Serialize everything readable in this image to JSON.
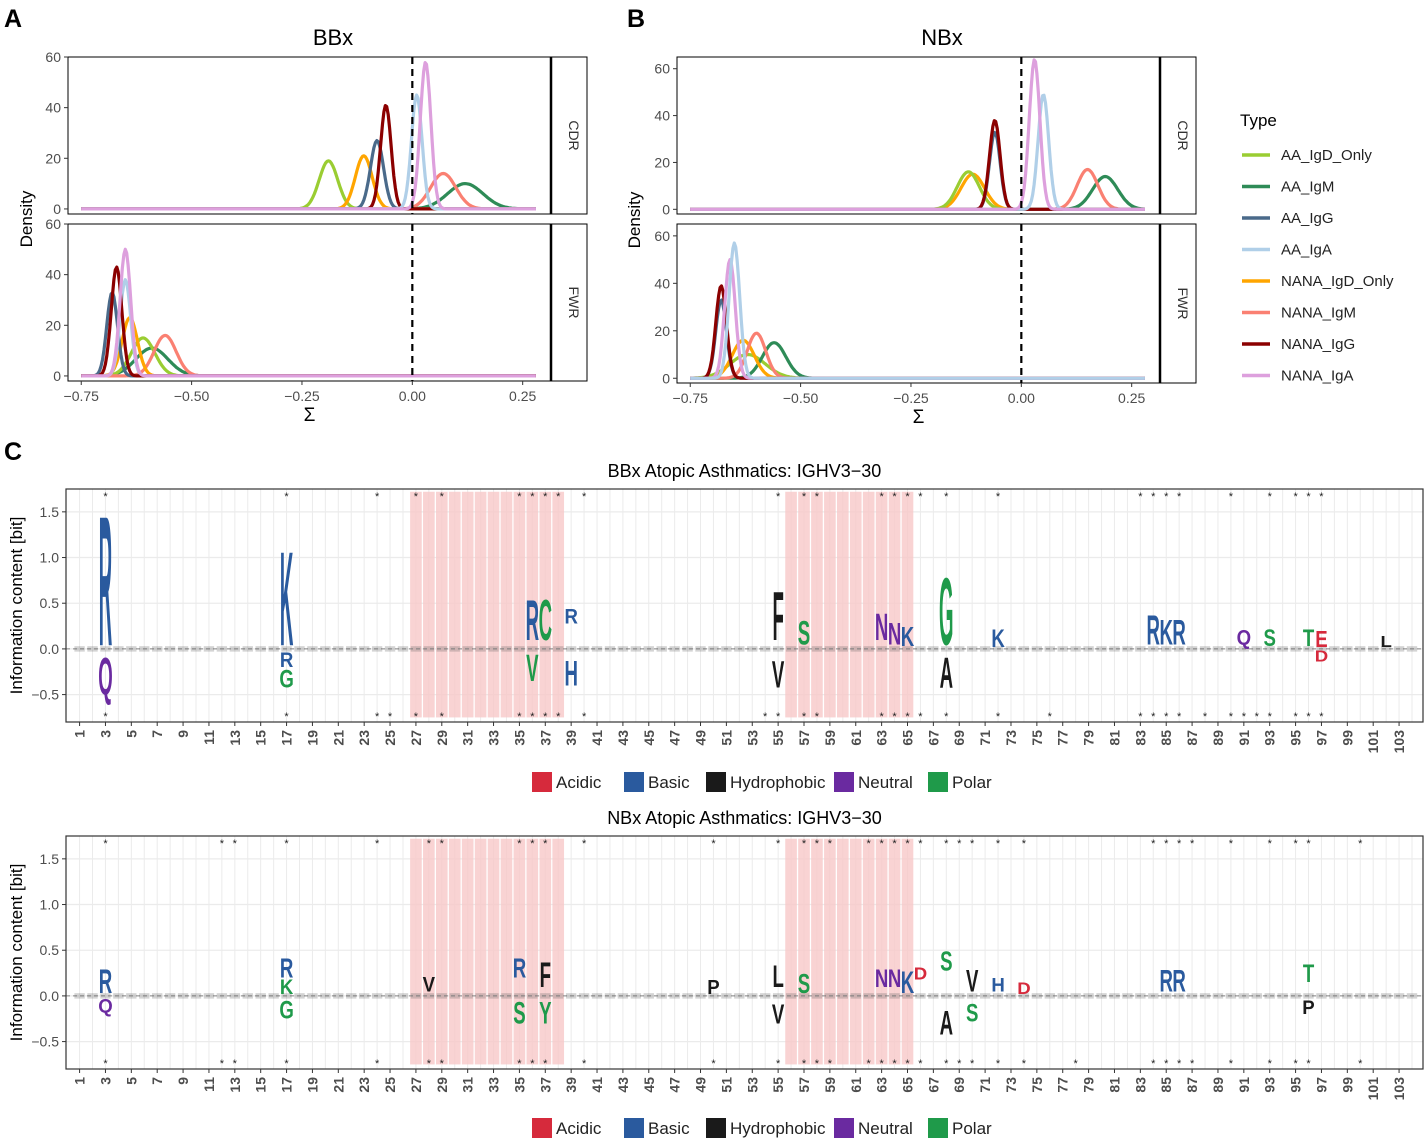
{
  "panel_labels": {
    "a": "A",
    "b": "B",
    "c": "C"
  },
  "colors": {
    "AA_IgD_Only": "#9acd32",
    "AA_IgM": "#2e8b57",
    "AA_IgG": "#4a6a8a",
    "AA_IgA": "#b0cfe8",
    "NANA_IgD_Only": "#ffa500",
    "NANA_IgM": "#fa8072",
    "NANA_IgG": "#8b0000",
    "NANA_IgA": "#dda0dd",
    "Acidic": "#d62a3c",
    "Basic": "#2a5a9e",
    "Hydrophobic": "#1a1a1a",
    "Neutral": "#6a2aa0",
    "Polar": "#1f9a4a",
    "cdr_highlight": "#f7c8c8"
  },
  "legend": {
    "title": "Type",
    "entries": [
      "AA_IgD_Only",
      "AA_IgM",
      "AA_IgG",
      "AA_IgA",
      "NANA_IgD_Only",
      "NANA_IgM",
      "NANA_IgG",
      "NANA_IgA"
    ]
  },
  "logo_legend": {
    "entries": [
      "Acidic",
      "Basic",
      "Hydrophobic",
      "Neutral",
      "Polar"
    ]
  },
  "chart_data": [
    {
      "type": "density",
      "title": "BBx",
      "xlabel": "Σ",
      "ylabel": "Density",
      "xlim": [
        -0.78,
        0.33
      ],
      "xticks": [
        -0.75,
        -0.5,
        -0.25,
        0.0,
        0.25
      ],
      "xtick_labels": [
        "−0.75",
        "−0.50",
        "−0.25",
        "0.00",
        "0.25"
      ],
      "vline": 0,
      "facets": [
        {
          "strip": "CDR",
          "ylim": [
            -2,
            60
          ],
          "yticks": [
            0,
            20,
            40,
            60
          ],
          "series": [
            {
              "name": "AA_IgD_Only",
              "mean": -0.19,
              "peak": 19
            },
            {
              "name": "AA_IgM",
              "mean": 0.12,
              "peak": 10
            },
            {
              "name": "AA_IgG",
              "mean": -0.08,
              "peak": 27
            },
            {
              "name": "AA_IgA",
              "mean": 0.01,
              "peak": 45
            },
            {
              "name": "NANA_IgD_Only",
              "mean": -0.11,
              "peak": 21
            },
            {
              "name": "NANA_IgM",
              "mean": 0.07,
              "peak": 14
            },
            {
              "name": "NANA_IgG",
              "mean": -0.06,
              "peak": 41
            },
            {
              "name": "NANA_IgA",
              "mean": 0.03,
              "peak": 58
            }
          ]
        },
        {
          "strip": "FWR",
          "ylim": [
            -2,
            60
          ],
          "yticks": [
            0,
            20,
            40,
            60
          ],
          "series": [
            {
              "name": "AA_IgD_Only",
              "mean": -0.61,
              "peak": 15
            },
            {
              "name": "AA_IgM",
              "mean": -0.59,
              "peak": 11
            },
            {
              "name": "AA_IgG",
              "mean": -0.68,
              "peak": 33
            },
            {
              "name": "AA_IgA",
              "mean": -0.65,
              "peak": 38
            },
            {
              "name": "NANA_IgD_Only",
              "mean": -0.64,
              "peak": 23
            },
            {
              "name": "NANA_IgM",
              "mean": -0.56,
              "peak": 16
            },
            {
              "name": "NANA_IgG",
              "mean": -0.67,
              "peak": 43
            },
            {
              "name": "NANA_IgA",
              "mean": -0.65,
              "peak": 50
            }
          ]
        }
      ]
    },
    {
      "type": "density",
      "title": "NBx",
      "xlabel": "Σ",
      "ylabel": "Density",
      "xlim": [
        -0.78,
        0.33
      ],
      "xticks": [
        -0.75,
        -0.5,
        -0.25,
        0.0,
        0.25
      ],
      "xtick_labels": [
        "−0.75",
        "−0.50",
        "−0.25",
        "0.00",
        "0.25"
      ],
      "vline": 0,
      "facets": [
        {
          "strip": "CDR",
          "ylim": [
            -2,
            65
          ],
          "yticks": [
            0,
            20,
            40,
            60
          ],
          "series": [
            {
              "name": "AA_IgD_Only",
              "mean": -0.12,
              "peak": 16
            },
            {
              "name": "AA_IgM",
              "mean": 0.19,
              "peak": 14
            },
            {
              "name": "AA_IgG",
              "mean": -0.06,
              "peak": 33
            },
            {
              "name": "AA_IgA",
              "mean": 0.05,
              "peak": 49
            },
            {
              "name": "NANA_IgD_Only",
              "mean": -0.11,
              "peak": 15
            },
            {
              "name": "NANA_IgM",
              "mean": 0.15,
              "peak": 17
            },
            {
              "name": "NANA_IgG",
              "mean": -0.06,
              "peak": 38
            },
            {
              "name": "NANA_IgA",
              "mean": 0.03,
              "peak": 64
            }
          ]
        },
        {
          "strip": "FWR",
          "ylim": [
            -2,
            65
          ],
          "yticks": [
            0,
            20,
            40,
            60
          ],
          "series": [
            {
              "name": "AA_IgD_Only",
              "mean": -0.62,
              "peak": 10
            },
            {
              "name": "AA_IgM",
              "mean": -0.56,
              "peak": 15
            },
            {
              "name": "AA_IgG",
              "mean": -0.68,
              "peak": 33
            },
            {
              "name": "AA_IgA",
              "mean": -0.65,
              "peak": 57
            },
            {
              "name": "NANA_IgD_Only",
              "mean": -0.63,
              "peak": 16
            },
            {
              "name": "NANA_IgM",
              "mean": -0.6,
              "peak": 19
            },
            {
              "name": "NANA_IgG",
              "mean": -0.68,
              "peak": 39
            },
            {
              "name": "NANA_IgA",
              "mean": -0.66,
              "peak": 50
            }
          ]
        }
      ]
    },
    {
      "type": "sequence-logo",
      "title": "BBx Atopic Asthmatics: IGHV3−30",
      "ylabel": "Information content [bit]",
      "ylim": [
        -0.8,
        1.75
      ],
      "yticks": [
        -0.5,
        0.0,
        0.5,
        1.0,
        1.5
      ],
      "ytick_labels": [
        "−0.5",
        "0.0",
        "0.5",
        "1.0",
        "1.5"
      ],
      "positions": 104,
      "xtick_labels": [
        "1",
        "3",
        "5",
        "7",
        "9",
        "11",
        "13",
        "15",
        "17",
        "19",
        "21",
        "23",
        "25",
        "27",
        "29",
        "31",
        "33",
        "35",
        "37",
        "39",
        "41",
        "43",
        "45",
        "47",
        "49",
        "51",
        "53",
        "55",
        "57",
        "59",
        "61",
        "63",
        "65",
        "67",
        "69",
        "71",
        "73",
        "75",
        "77",
        "79",
        "81",
        "83",
        "85",
        "87",
        "89",
        "91",
        "93",
        "95",
        "97",
        "99",
        "101",
        "103"
      ],
      "cdr_regions": [
        [
          27,
          38
        ],
        [
          56,
          65
        ]
      ],
      "stars_top": [
        3,
        17,
        24,
        27,
        29,
        35,
        36,
        37,
        38,
        40,
        55,
        57,
        58,
        63,
        64,
        65,
        66,
        68,
        72,
        83,
        84,
        85,
        86,
        90,
        93,
        95,
        96,
        97
      ],
      "stars_bottom": [
        3,
        17,
        24,
        25,
        27,
        29,
        35,
        36,
        37,
        38,
        40,
        54,
        55,
        57,
        58,
        63,
        64,
        65,
        66,
        68,
        72,
        76,
        83,
        84,
        85,
        86,
        88,
        90,
        91,
        92,
        93,
        95,
        96,
        97
      ],
      "letters": [
        {
          "pos": 3,
          "aa": "R",
          "cls": "Basic",
          "lo": 0.04,
          "hi": 1.5
        },
        {
          "pos": 3,
          "aa": "Q",
          "cls": "Neutral",
          "lo": -0.5,
          "hi": -0.08
        },
        {
          "pos": 17,
          "aa": "K",
          "cls": "Basic",
          "lo": 0.04,
          "hi": 1.1
        },
        {
          "pos": 17,
          "aa": "R",
          "cls": "Basic",
          "lo": -0.2,
          "hi": -0.03
        },
        {
          "pos": 17,
          "aa": "G",
          "cls": "Polar",
          "lo": -0.42,
          "hi": -0.22
        },
        {
          "pos": 36,
          "aa": "R",
          "cls": "Basic",
          "lo": 0.1,
          "hi": 0.55
        },
        {
          "pos": 37,
          "aa": "C",
          "cls": "Polar",
          "lo": 0.1,
          "hi": 0.55
        },
        {
          "pos": 36,
          "aa": "V",
          "cls": "Polar",
          "lo": -0.35,
          "hi": -0.05
        },
        {
          "pos": 39,
          "aa": "R",
          "cls": "Basic",
          "lo": 0.28,
          "hi": 0.45
        },
        {
          "pos": 39,
          "aa": "H",
          "cls": "Basic",
          "lo": -0.4,
          "hi": -0.12
        },
        {
          "pos": 55,
          "aa": "F",
          "cls": "Hydrophobic",
          "lo": 0.1,
          "hi": 0.65
        },
        {
          "pos": 55,
          "aa": "V",
          "cls": "Hydrophobic",
          "lo": -0.42,
          "hi": -0.12
        },
        {
          "pos": 57,
          "aa": "S",
          "cls": "Polar",
          "lo": 0.05,
          "hi": 0.32
        },
        {
          "pos": 63,
          "aa": "N",
          "cls": "Neutral",
          "lo": 0.1,
          "hi": 0.4
        },
        {
          "pos": 64,
          "aa": "N",
          "cls": "Neutral",
          "lo": 0.05,
          "hi": 0.3
        },
        {
          "pos": 65,
          "aa": "K",
          "cls": "Basic",
          "lo": 0.03,
          "hi": 0.25
        },
        {
          "pos": 68,
          "aa": "G",
          "cls": "Polar",
          "lo": 0.05,
          "hi": 0.8
        },
        {
          "pos": 68,
          "aa": "A",
          "cls": "Hydrophobic",
          "lo": -0.42,
          "hi": -0.08
        },
        {
          "pos": 72,
          "aa": "K",
          "cls": "Basic",
          "lo": 0.02,
          "hi": 0.22
        },
        {
          "pos": 84,
          "aa": "R",
          "cls": "Basic",
          "lo": 0.05,
          "hi": 0.38
        },
        {
          "pos": 85,
          "aa": "K",
          "cls": "Basic",
          "lo": 0.05,
          "hi": 0.33
        },
        {
          "pos": 86,
          "aa": "R",
          "cls": "Basic",
          "lo": 0.05,
          "hi": 0.33
        },
        {
          "pos": 91,
          "aa": "Q",
          "cls": "Neutral",
          "lo": 0.05,
          "hi": 0.22
        },
        {
          "pos": 93,
          "aa": "S",
          "cls": "Polar",
          "lo": 0.03,
          "hi": 0.22
        },
        {
          "pos": 96,
          "aa": "T",
          "cls": "Polar",
          "lo": 0.03,
          "hi": 0.22
        },
        {
          "pos": 97,
          "aa": "E",
          "cls": "Acidic",
          "lo": 0.02,
          "hi": 0.2
        },
        {
          "pos": 97,
          "aa": "D",
          "cls": "Acidic",
          "lo": -0.14,
          "hi": -0.02
        },
        {
          "pos": 102,
          "aa": "L",
          "cls": "Hydrophobic",
          "lo": 0.02,
          "hi": 0.14
        }
      ]
    },
    {
      "type": "sequence-logo",
      "title": "NBx Atopic Asthmatics: IGHV3−30",
      "ylabel": "Information content [bit]",
      "ylim": [
        -0.8,
        1.75
      ],
      "yticks": [
        -0.5,
        0.0,
        0.5,
        1.0,
        1.5
      ],
      "ytick_labels": [
        "−0.5",
        "0.0",
        "0.5",
        "1.0",
        "1.5"
      ],
      "positions": 104,
      "xtick_labels": [
        "1",
        "3",
        "5",
        "7",
        "9",
        "11",
        "13",
        "15",
        "17",
        "19",
        "21",
        "23",
        "25",
        "27",
        "29",
        "31",
        "33",
        "35",
        "37",
        "39",
        "41",
        "43",
        "45",
        "47",
        "49",
        "51",
        "53",
        "55",
        "57",
        "59",
        "61",
        "63",
        "65",
        "67",
        "69",
        "71",
        "73",
        "75",
        "77",
        "79",
        "81",
        "83",
        "85",
        "87",
        "89",
        "91",
        "93",
        "95",
        "97",
        "99",
        "101",
        "103"
      ],
      "cdr_regions": [
        [
          27,
          38
        ],
        [
          56,
          65
        ]
      ],
      "stars_top": [
        3,
        12,
        13,
        17,
        24,
        28,
        29,
        35,
        36,
        37,
        40,
        50,
        55,
        57,
        58,
        59,
        62,
        63,
        64,
        65,
        66,
        68,
        69,
        70,
        72,
        74,
        84,
        85,
        86,
        87,
        90,
        93,
        95,
        96,
        100
      ],
      "stars_bottom": [
        3,
        12,
        13,
        17,
        24,
        28,
        29,
        35,
        36,
        37,
        40,
        50,
        55,
        57,
        58,
        59,
        62,
        63,
        64,
        65,
        66,
        68,
        69,
        70,
        72,
        74,
        78,
        84,
        85,
        86,
        87,
        90,
        93,
        95,
        96,
        100
      ],
      "letters": [
        {
          "pos": 3,
          "aa": "R",
          "cls": "Basic",
          "lo": 0.03,
          "hi": 0.3
        },
        {
          "pos": 3,
          "aa": "Q",
          "cls": "Neutral",
          "lo": -0.18,
          "hi": -0.03
        },
        {
          "pos": 17,
          "aa": "R",
          "cls": "Basic",
          "lo": 0.2,
          "hi": 0.42
        },
        {
          "pos": 17,
          "aa": "K",
          "cls": "Polar",
          "lo": 0.02,
          "hi": 0.19
        },
        {
          "pos": 17,
          "aa": "G",
          "cls": "Polar",
          "lo": -0.25,
          "hi": -0.05
        },
        {
          "pos": 28,
          "aa": "V",
          "cls": "Hydrophobic",
          "lo": 0.05,
          "hi": 0.22
        },
        {
          "pos": 35,
          "aa": "R",
          "cls": "Basic",
          "lo": 0.2,
          "hi": 0.42
        },
        {
          "pos": 35,
          "aa": "S",
          "cls": "Polar",
          "lo": -0.3,
          "hi": -0.05
        },
        {
          "pos": 37,
          "aa": "F",
          "cls": "Hydrophobic",
          "lo": 0.1,
          "hi": 0.38
        },
        {
          "pos": 37,
          "aa": "Y",
          "cls": "Polar",
          "lo": -0.3,
          "hi": -0.05
        },
        {
          "pos": 50,
          "aa": "P",
          "cls": "Hydrophobic",
          "lo": 0.02,
          "hi": 0.18
        },
        {
          "pos": 55,
          "aa": "L",
          "cls": "Hydrophobic",
          "lo": 0.1,
          "hi": 0.35
        },
        {
          "pos": 55,
          "aa": "V",
          "cls": "Hydrophobic",
          "lo": -0.3,
          "hi": -0.08
        },
        {
          "pos": 57,
          "aa": "S",
          "cls": "Polar",
          "lo": 0.03,
          "hi": 0.25
        },
        {
          "pos": 63,
          "aa": "N",
          "cls": "Neutral",
          "lo": 0.1,
          "hi": 0.3
        },
        {
          "pos": 64,
          "aa": "N",
          "cls": "Neutral",
          "lo": 0.1,
          "hi": 0.3
        },
        {
          "pos": 65,
          "aa": "K",
          "cls": "Basic",
          "lo": 0.03,
          "hi": 0.28
        },
        {
          "pos": 66,
          "aa": "D",
          "cls": "Acidic",
          "lo": 0.18,
          "hi": 0.32
        },
        {
          "pos": 68,
          "aa": "S",
          "cls": "Polar",
          "lo": 0.28,
          "hi": 0.5
        },
        {
          "pos": 68,
          "aa": "A",
          "cls": "Hydrophobic",
          "lo": -0.42,
          "hi": -0.15
        },
        {
          "pos": 70,
          "aa": "V",
          "cls": "Hydrophobic",
          "lo": 0.05,
          "hi": 0.3
        },
        {
          "pos": 70,
          "aa": "S",
          "cls": "Polar",
          "lo": -0.28,
          "hi": -0.08
        },
        {
          "pos": 72,
          "aa": "H",
          "cls": "Basic",
          "lo": 0.05,
          "hi": 0.2
        },
        {
          "pos": 74,
          "aa": "D",
          "cls": "Acidic",
          "lo": 0.02,
          "hi": 0.15
        },
        {
          "pos": 85,
          "aa": "R",
          "cls": "Basic",
          "lo": 0.05,
          "hi": 0.3
        },
        {
          "pos": 86,
          "aa": "R",
          "cls": "Basic",
          "lo": 0.05,
          "hi": 0.3
        },
        {
          "pos": 96,
          "aa": "T",
          "cls": "Polar",
          "lo": 0.15,
          "hi": 0.35
        },
        {
          "pos": 96,
          "aa": "P",
          "cls": "Hydrophobic",
          "lo": -0.2,
          "hi": -0.05
        }
      ]
    }
  ]
}
